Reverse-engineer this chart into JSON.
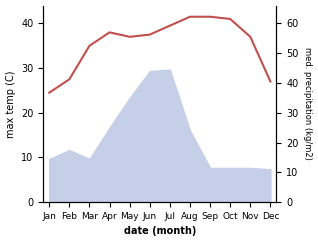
{
  "months": [
    "Jan",
    "Feb",
    "Mar",
    "Apr",
    "May",
    "Jun",
    "Jul",
    "Aug",
    "Sep",
    "Oct",
    "Nov",
    "Dec"
  ],
  "temp": [
    24.5,
    27.5,
    35.0,
    38.0,
    37.0,
    37.5,
    39.5,
    41.5,
    41.5,
    41.0,
    37.0,
    27.0
  ],
  "precip": [
    14.5,
    17.5,
    14.5,
    25.0,
    35.0,
    44.0,
    44.5,
    24.0,
    11.5,
    11.5,
    11.5,
    11.0
  ],
  "temp_color": "#c0504d",
  "precip_fill_color": "#c5cfe8",
  "ylim_left": [
    0,
    44
  ],
  "ylim_right": [
    0,
    66
  ],
  "ylabel_left": "max temp (C)",
  "ylabel_right": "med. precipitation (kg/m2)",
  "xlabel": "date (month)",
  "left_ticks": [
    0,
    10,
    20,
    30,
    40
  ],
  "right_ticks": [
    0,
    10,
    20,
    30,
    40,
    50,
    60
  ],
  "bg_color": "#ffffff"
}
